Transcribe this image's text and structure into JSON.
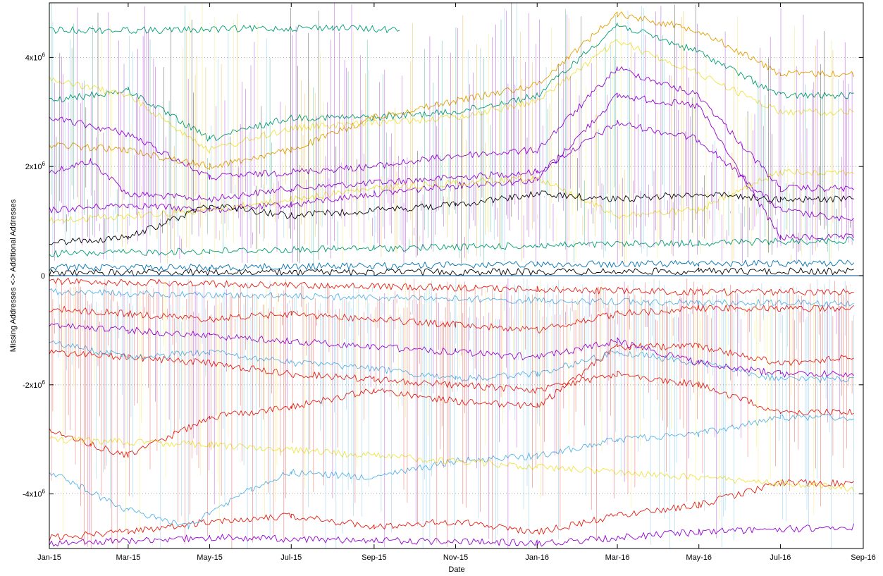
{
  "chart_data": {
    "type": "line",
    "title": "",
    "xlabel": "Date",
    "ylabel": "Missing Addresses <-> Additional Addresses",
    "x_type": "date",
    "xlim": [
      "2015-01-01",
      "2016-09-01"
    ],
    "x_ticks": [
      {
        "value": "2015-01-01",
        "label": "Jan-15"
      },
      {
        "value": "2015-03-01",
        "label": "Mar-15"
      },
      {
        "value": "2015-05-01",
        "label": "May-15"
      },
      {
        "value": "2015-07-01",
        "label": "Jul-15"
      },
      {
        "value": "2015-09-01",
        "label": "Sep-15"
      },
      {
        "value": "2015-11-01",
        "label": "Nov-15"
      },
      {
        "value": "2016-01-01",
        "label": "Jan-16"
      },
      {
        "value": "2016-03-01",
        "label": "Mar-16"
      },
      {
        "value": "2016-05-01",
        "label": "May-16"
      },
      {
        "value": "2016-07-01",
        "label": "Jul-16"
      },
      {
        "value": "2016-09-01",
        "label": "Sep-16"
      }
    ],
    "ylim": [
      -5000000,
      5000000
    ],
    "y_ticks": [
      {
        "value": 4000000,
        "base": "4x10",
        "exp": "6"
      },
      {
        "value": 2000000,
        "base": "2x10",
        "exp": "6"
      },
      {
        "value": 0,
        "base": "0",
        "exp": ""
      },
      {
        "value": -2000000,
        "base": "-2x10",
        "exp": "6"
      },
      {
        "value": -4000000,
        "base": "-4x10",
        "exp": "6"
      }
    ],
    "grid": "horizontal dotted",
    "legend": "none",
    "colors": [
      "#9400d3",
      "#009e73",
      "#56b4e9",
      "#e69f00",
      "#f0e442",
      "#e51e10",
      "#000000",
      "#0072b2"
    ],
    "series": [
      {
        "color": "#9400d3",
        "x": [
          "2015-01-01",
          "2015-02-01",
          "2015-03-01",
          "2015-05-01",
          "2015-07-01",
          "2015-09-01",
          "2015-11-01",
          "2016-01-01",
          "2016-03-01",
          "2016-05-01",
          "2016-07-01",
          "2016-08-25"
        ],
        "y": [
          1900000,
          2100000,
          1500000,
          1400000,
          1600000,
          1700000,
          1800000,
          1900000,
          2800000,
          2500000,
          1200000,
          1000000
        ]
      },
      {
        "color": "#9400d3",
        "x": [
          "2015-01-01",
          "2015-03-01",
          "2015-05-01",
          "2015-07-01",
          "2015-09-01",
          "2015-11-01",
          "2016-01-01",
          "2016-03-01",
          "2016-05-01",
          "2016-07-01",
          "2016-08-25"
        ],
        "y": [
          1200000,
          1300000,
          1200000,
          1300000,
          1500000,
          1650000,
          1750000,
          3300000,
          3100000,
          700000,
          700000
        ]
      },
      {
        "color": "#9400d3",
        "x": [
          "2015-01-01",
          "2015-03-01",
          "2015-05-01",
          "2015-07-01",
          "2015-09-01",
          "2015-11-01",
          "2016-01-01",
          "2016-03-01",
          "2016-05-01",
          "2016-07-01",
          "2016-08-25"
        ],
        "y": [
          2900000,
          2600000,
          1800000,
          1900000,
          2000000,
          2200000,
          2300000,
          3800000,
          3300000,
          1600000,
          1600000
        ]
      },
      {
        "color": "#009e73",
        "x": [
          "2015-01-01",
          "2015-03-01",
          "2015-05-01",
          "2015-07-01",
          "2015-09-01",
          "2015-11-01",
          "2016-01-01",
          "2016-03-01",
          "2016-05-01",
          "2016-07-01",
          "2016-08-25"
        ],
        "y": [
          3200000,
          3400000,
          2500000,
          2900000,
          2900000,
          3000000,
          3300000,
          4600000,
          4100000,
          3300000,
          3300000
        ]
      },
      {
        "color": "#009e73",
        "x": [
          "2015-01-01",
          "2015-04-01",
          "2015-08-01",
          "2015-09-20"
        ],
        "y": [
          4500000,
          4500000,
          4550000,
          4500000
        ]
      },
      {
        "color": "#009e73",
        "x": [
          "2015-01-01",
          "2015-05-01",
          "2015-09-01",
          "2016-01-01",
          "2016-05-01",
          "2016-08-25"
        ],
        "y": [
          400000,
          450000,
          500000,
          550000,
          600000,
          650000
        ]
      },
      {
        "color": "#e69f00",
        "x": [
          "2015-01-01",
          "2015-03-01",
          "2015-05-01",
          "2015-07-01",
          "2015-09-01",
          "2015-11-01",
          "2016-01-01",
          "2016-03-01",
          "2016-05-01",
          "2016-07-01",
          "2016-08-25"
        ],
        "y": [
          2400000,
          2300000,
          2000000,
          2300000,
          2900000,
          3200000,
          3500000,
          4800000,
          4500000,
          3700000,
          3700000
        ]
      },
      {
        "color": "#f0e442",
        "x": [
          "2015-01-01",
          "2015-03-01",
          "2015-05-01",
          "2015-07-01",
          "2015-09-01",
          "2015-11-01",
          "2016-01-01",
          "2016-03-01",
          "2016-05-01",
          "2016-07-01",
          "2016-08-25"
        ],
        "y": [
          1000000,
          1100000,
          1200000,
          1400000,
          1600000,
          1700000,
          1800000,
          1100000,
          1200000,
          1900000,
          1900000
        ]
      },
      {
        "color": "#f0e442",
        "x": [
          "2015-01-01",
          "2015-03-01",
          "2015-05-01",
          "2015-07-01",
          "2015-09-01",
          "2015-11-01",
          "2016-01-01",
          "2016-03-01",
          "2016-05-01",
          "2016-07-01",
          "2016-08-25"
        ],
        "y": [
          3600000,
          3300000,
          2300000,
          2700000,
          2800000,
          2900000,
          3200000,
          4300000,
          3700000,
          3000000,
          3000000
        ]
      },
      {
        "color": "#000000",
        "x": [
          "2015-01-01",
          "2015-03-01",
          "2015-05-01",
          "2015-07-01",
          "2015-09-01",
          "2015-11-01",
          "2016-01-01",
          "2016-03-01",
          "2016-05-01",
          "2016-07-01",
          "2016-08-25"
        ],
        "y": [
          600000,
          700000,
          1300000,
          1100000,
          1200000,
          1300000,
          1500000,
          1400000,
          1500000,
          1400000,
          1400000
        ]
      },
      {
        "color": "#000000",
        "x": [
          "2015-01-01",
          "2015-05-01",
          "2015-09-01",
          "2016-01-01",
          "2016-05-01",
          "2016-08-25"
        ],
        "y": [
          50000,
          60000,
          60000,
          70000,
          80000,
          80000
        ]
      },
      {
        "color": "#0072b2",
        "x": [
          "2015-01-01",
          "2015-05-01",
          "2015-09-01",
          "2016-01-01",
          "2016-05-01",
          "2016-08-25"
        ],
        "y": [
          150000,
          150000,
          180000,
          200000,
          220000,
          230000
        ]
      },
      {
        "color": "#e51e10",
        "x": [
          "2015-01-01",
          "2015-05-01",
          "2015-09-01",
          "2016-01-01",
          "2016-05-01",
          "2016-08-25"
        ],
        "y": [
          -100000,
          -150000,
          -200000,
          -250000,
          -300000,
          -300000
        ]
      },
      {
        "color": "#e51e10",
        "x": [
          "2015-01-01",
          "2015-03-01",
          "2015-05-01",
          "2015-07-01",
          "2015-09-01",
          "2015-11-01",
          "2016-01-01",
          "2016-03-01",
          "2016-05-01",
          "2016-07-01",
          "2016-08-25"
        ],
        "y": [
          -600000,
          -700000,
          -800000,
          -700000,
          -800000,
          -900000,
          -1000000,
          -700000,
          -600000,
          -600000,
          -600000
        ]
      },
      {
        "color": "#e51e10",
        "x": [
          "2015-01-01",
          "2015-02-01",
          "2015-03-01",
          "2015-05-01",
          "2015-07-01",
          "2015-09-01",
          "2015-11-01",
          "2016-01-01",
          "2016-03-01",
          "2016-05-01",
          "2016-07-01",
          "2016-08-25"
        ],
        "y": [
          -2800000,
          -3100000,
          -3300000,
          -2600000,
          -2400000,
          -2100000,
          -2300000,
          -2400000,
          -1300000,
          -1300000,
          -1600000,
          -1500000
        ]
      },
      {
        "color": "#e51e10",
        "x": [
          "2015-01-01",
          "2015-03-01",
          "2015-05-01",
          "2015-07-01",
          "2015-09-01",
          "2015-11-01",
          "2016-01-01",
          "2016-03-01",
          "2016-05-01",
          "2016-07-01",
          "2016-08-25"
        ],
        "y": [
          -4800000,
          -4700000,
          -4500000,
          -4400000,
          -4600000,
          -4500000,
          -4700000,
          -4400000,
          -4200000,
          -3800000,
          -3800000
        ]
      },
      {
        "color": "#e51e10",
        "x": [
          "2015-01-01",
          "2015-03-01",
          "2015-05-01",
          "2015-07-01",
          "2015-09-01",
          "2015-11-01",
          "2016-01-01",
          "2016-03-01",
          "2016-05-01",
          "2016-07-01",
          "2016-08-25"
        ],
        "y": [
          -1400000,
          -1500000,
          -1600000,
          -1800000,
          -1900000,
          -2000000,
          -2100000,
          -1800000,
          -2000000,
          -2500000,
          -2500000
        ]
      },
      {
        "color": "#56b4e9",
        "x": [
          "2015-01-01",
          "2015-03-01",
          "2015-05-01",
          "2015-07-01",
          "2015-09-01",
          "2015-11-01",
          "2016-01-01",
          "2016-03-01",
          "2016-05-01",
          "2016-07-01",
          "2016-08-25"
        ],
        "y": [
          -1200000,
          -1500000,
          -1400000,
          -1600000,
          -1700000,
          -1900000,
          -1800000,
          -1400000,
          -1600000,
          -1900000,
          -1900000
        ]
      },
      {
        "color": "#56b4e9",
        "x": [
          "2015-01-01",
          "2015-03-01",
          "2015-04-15",
          "2015-06-01",
          "2015-07-01",
          "2015-09-01",
          "2015-11-01",
          "2016-01-01",
          "2016-03-01",
          "2016-05-01",
          "2016-07-01",
          "2016-08-25"
        ],
        "y": [
          -3600000,
          -4300000,
          -4600000,
          -3900000,
          -3600000,
          -3700000,
          -3400000,
          -3300000,
          -3000000,
          -2900000,
          -2600000,
          -2600000
        ]
      },
      {
        "color": "#56b4e9",
        "x": [
          "2015-01-01",
          "2015-05-01",
          "2015-09-01",
          "2016-01-01",
          "2016-05-01",
          "2016-08-25"
        ],
        "y": [
          -300000,
          -350000,
          -400000,
          -450000,
          -500000,
          -500000
        ]
      },
      {
        "color": "#9400d3",
        "x": [
          "2015-01-01",
          "2015-03-01",
          "2015-05-01",
          "2015-07-01",
          "2015-09-01",
          "2015-11-01",
          "2016-01-01",
          "2016-03-01",
          "2016-05-01",
          "2016-07-01",
          "2016-08-25"
        ],
        "y": [
          -900000,
          -1000000,
          -1100000,
          -1200000,
          -1300000,
          -1400000,
          -1500000,
          -1200000,
          -1600000,
          -1800000,
          -1800000
        ]
      },
      {
        "color": "#9400d3",
        "x": [
          "2015-01-01",
          "2015-05-01",
          "2015-09-01",
          "2016-01-01",
          "2016-05-01",
          "2016-08-25"
        ],
        "y": [
          -4900000,
          -4800000,
          -4850000,
          -4900000,
          -4700000,
          -4600000
        ]
      },
      {
        "color": "#f0e442",
        "x": [
          "2015-01-01",
          "2015-05-01",
          "2015-09-01",
          "2016-01-01",
          "2016-05-01",
          "2016-08-25"
        ],
        "y": [
          -3000000,
          -3100000,
          -3300000,
          -3500000,
          -3700000,
          -3900000
        ]
      }
    ]
  }
}
